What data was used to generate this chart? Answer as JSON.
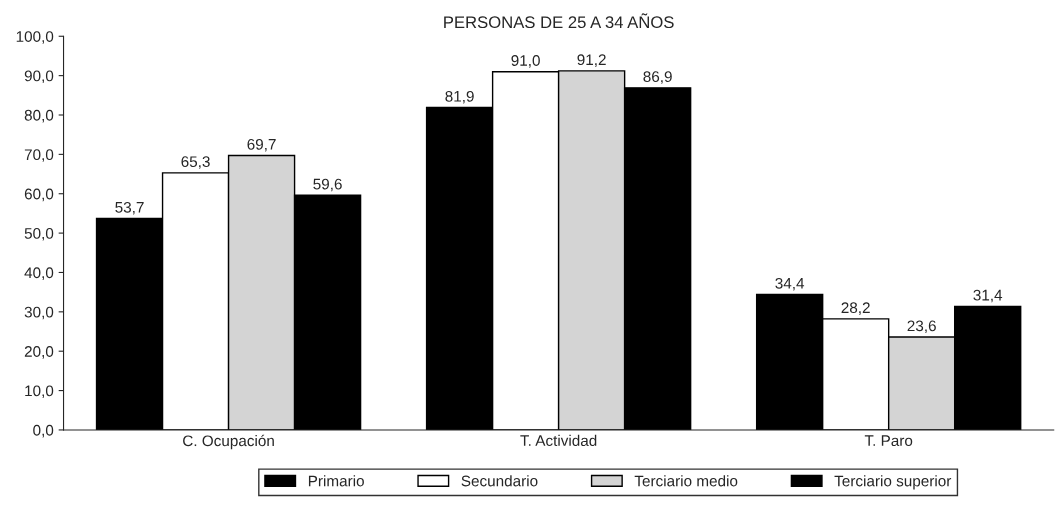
{
  "chart_data": {
    "type": "bar",
    "title": "PERSONAS DE 25 A 34 AÑOS",
    "categories": [
      "C. Ocupación",
      "T. Actividad",
      "T. Paro"
    ],
    "series": [
      {
        "name": "Primario",
        "color": "#000000",
        "values": [
          53.7,
          81.9,
          34.4
        ],
        "value_labels": [
          "53,7",
          "81,9",
          "34,4"
        ]
      },
      {
        "name": "Secundario",
        "color": "#ffffff",
        "values": [
          65.3,
          91.0,
          28.2
        ],
        "value_labels": [
          "65,3",
          "91,0",
          "28,2"
        ]
      },
      {
        "name": "Terciario medio",
        "color": "#d4d4d4",
        "values": [
          69.7,
          91.2,
          23.6
        ],
        "value_labels": [
          "69,7",
          "91,2",
          "23,6"
        ]
      },
      {
        "name": "Terciario superior",
        "color": "#000000",
        "values": [
          59.6,
          86.9,
          31.4
        ],
        "value_labels": [
          "59,6",
          "86,9",
          "31,4"
        ]
      }
    ],
    "ylim": [
      0,
      100
    ],
    "yticks": [
      {
        "value": 0,
        "label": "0,0"
      },
      {
        "value": 10,
        "label": "10,0"
      },
      {
        "value": 20,
        "label": "20,0"
      },
      {
        "value": 30,
        "label": "30,0"
      },
      {
        "value": 40,
        "label": "40,0"
      },
      {
        "value": 50,
        "label": "50,0"
      },
      {
        "value": 60,
        "label": "60,0"
      },
      {
        "value": 70,
        "label": "70,0"
      },
      {
        "value": 80,
        "label": "80,0"
      },
      {
        "value": 90,
        "label": "90,0"
      },
      {
        "value": 100,
        "label": "100,0"
      }
    ],
    "grid": false,
    "legend": "bottom"
  }
}
